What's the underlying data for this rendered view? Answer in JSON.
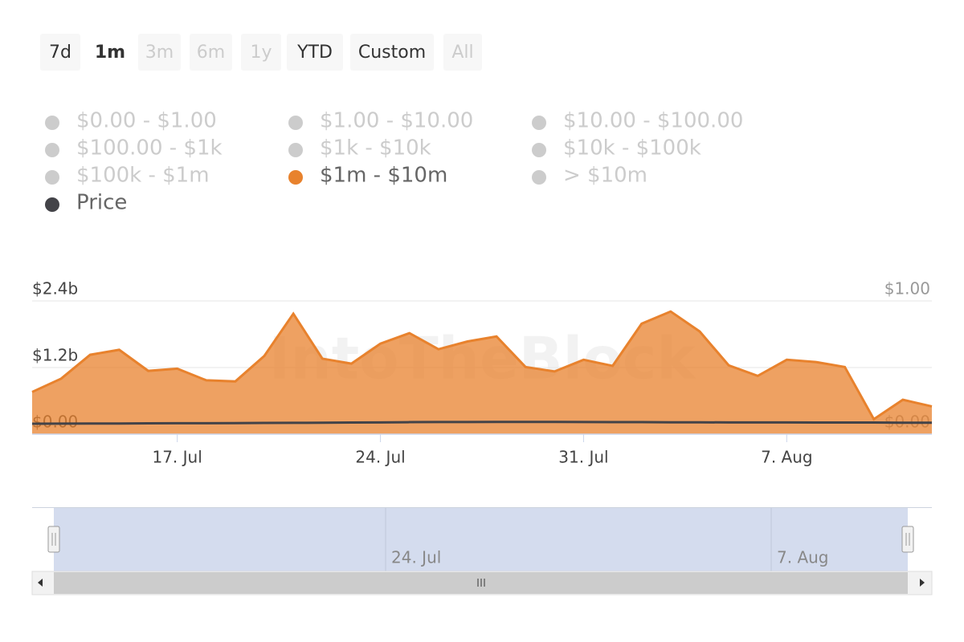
{
  "range_selector": {
    "buttons": [
      {
        "label": "7d",
        "state": "normal"
      },
      {
        "label": "1m",
        "state": "selected"
      },
      {
        "label": "3m",
        "state": "disabled"
      },
      {
        "label": "6m",
        "state": "disabled"
      },
      {
        "label": "1y",
        "state": "disabled"
      },
      {
        "label": "YTD",
        "state": "normal"
      },
      {
        "label": "Custom",
        "state": "normal"
      },
      {
        "label": "All",
        "state": "disabled"
      }
    ]
  },
  "chart_data": {
    "type": "area",
    "watermark": "IntoTheBlock",
    "categories": [
      null,
      null,
      null,
      null,
      null,
      "17. Jul",
      null,
      null,
      null,
      null,
      null,
      null,
      "24. Jul",
      null,
      null,
      null,
      null,
      null,
      null,
      "31. Jul",
      null,
      null,
      null,
      null,
      null,
      null,
      "7. Aug",
      null,
      null,
      null,
      null,
      null
    ],
    "ylim": [
      0,
      2.4
    ],
    "yticks": [
      {
        "value": 0,
        "label": "$0.00"
      },
      {
        "value": 1.2,
        "label": "$1.2b"
      },
      {
        "value": 2.4,
        "label": "$2.4b"
      }
    ],
    "y2lim": [
      0,
      1
    ],
    "y2ticks": [
      {
        "value": 0,
        "label": "$0.00"
      },
      {
        "value": 1,
        "label": "$1.00"
      }
    ],
    "grid": true,
    "series": [
      {
        "name": "$0.00 - $1.00",
        "visible": false
      },
      {
        "name": "$1.00 - $10.00",
        "visible": false
      },
      {
        "name": "$10.00 - $100.00",
        "visible": false
      },
      {
        "name": "$100.00 - $1k",
        "visible": false
      },
      {
        "name": "$1k - $10k",
        "visible": false
      },
      {
        "name": "$10k - $100k",
        "visible": false
      },
      {
        "name": "$100k - $1m",
        "visible": false
      },
      {
        "name": "$1m - $10m",
        "visible": true,
        "color": "#e8822d",
        "values": [
          0.76,
          1.0,
          1.43,
          1.52,
          1.14,
          1.18,
          0.97,
          0.95,
          1.41,
          2.17,
          1.36,
          1.27,
          1.63,
          1.82,
          1.53,
          1.67,
          1.76,
          1.21,
          1.13,
          1.34,
          1.23,
          1.99,
          2.21,
          1.85,
          1.24,
          1.05,
          1.34,
          1.3,
          1.21,
          0.27,
          0.62,
          0.5
        ]
      },
      {
        "name": "> $10m",
        "visible": false
      },
      {
        "name": "Price",
        "visible": true,
        "color": "#434348",
        "axis": "y2",
        "type": "line",
        "values": [
          0.078,
          0.079,
          0.08,
          0.08,
          0.081,
          0.082,
          0.082,
          0.083,
          0.084,
          0.085,
          0.086,
          0.087,
          0.088,
          0.09,
          0.091,
          0.091,
          0.092,
          0.092,
          0.092,
          0.091,
          0.09,
          0.09,
          0.089,
          0.089,
          0.088,
          0.088,
          0.088,
          0.087,
          0.087,
          0.087,
          0.086,
          0.086
        ]
      }
    ]
  },
  "navigator": {
    "labels": [
      "24. Jul",
      "7. Aug"
    ]
  }
}
